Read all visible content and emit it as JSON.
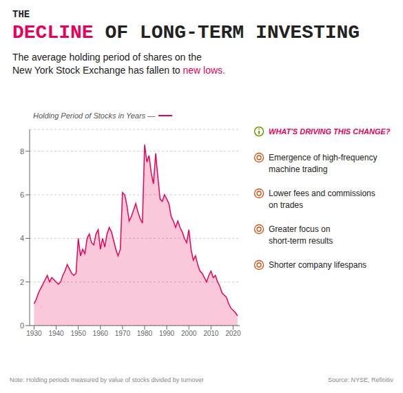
{
  "chart_data": {
    "type": "area",
    "title": [
      [
        {
          "text": "THE"
        }
      ],
      [
        {
          "text": "DECLINE",
          "color": "#e8005a"
        },
        {
          "text": "OF LONG-TERM"
        },
        {
          "text": "INVESTING"
        }
      ]
    ],
    "subtitle": [
      [
        {
          "text": "The average holding period of shares on the"
        }
      ],
      [
        {
          "text": "New York Stock Exchange has fallen to"
        },
        {
          "text": "new lows.",
          "color": "#e8005a"
        }
      ]
    ],
    "y_label": "Holding Period of Stocks in Years —",
    "annotations": {
      "panel_title": "WHAT'S DRIVING THIS CHANGE?",
      "panel_items": [
        "Emergence of high-frequency\nmachine trading",
        "Lower fees and commissions\non trades",
        "Greater focus on\nshort-term results",
        "Shorter company lifespans"
      ],
      "note": "Note: Holding periods measured by value of stocks divided by turnover",
      "source": "Source: NYSE, Refinitiv"
    },
    "x": [
      1930,
      1931,
      1932,
      1933,
      1934,
      1935,
      1936,
      1937,
      1938,
      1939,
      1940,
      1941,
      1942,
      1943,
      1944,
      1945,
      1946,
      1947,
      1948,
      1949,
      1950,
      1951,
      1952,
      1953,
      1954,
      1955,
      1956,
      1957,
      1958,
      1959,
      1960,
      1961,
      1962,
      1963,
      1964,
      1965,
      1966,
      1967,
      1968,
      1969,
      1970,
      1971,
      1972,
      1973,
      1974,
      1975,
      1976,
      1977,
      1978,
      1979,
      1980,
      1981,
      1982,
      1983,
      1984,
      1985,
      1986,
      1987,
      1988,
      1989,
      1990,
      1991,
      1992,
      1993,
      1994,
      1995,
      1996,
      1997,
      1998,
      1999,
      2000,
      2001,
      2002,
      2003,
      2004,
      2005,
      2006,
      2007,
      2008,
      2009,
      2010,
      2011,
      2012,
      2013,
      2014,
      2015,
      2016,
      2017,
      2018,
      2019,
      2020,
      2021,
      2022
    ],
    "values": [
      1.0,
      1.2,
      1.5,
      1.7,
      1.9,
      2.1,
      2.3,
      2.0,
      2.2,
      2.1,
      2.0,
      1.9,
      2.0,
      2.3,
      2.5,
      2.8,
      2.6,
      2.4,
      2.3,
      2.4,
      4.0,
      3.2,
      3.5,
      3.3,
      4.0,
      4.2,
      3.8,
      3.7,
      4.2,
      4.4,
      3.5,
      4.0,
      3.6,
      4.2,
      4.5,
      4.3,
      3.9,
      3.5,
      3.2,
      3.5,
      6.1,
      6.0,
      5.5,
      4.8,
      5.0,
      5.3,
      5.6,
      5.2,
      4.9,
      4.7,
      8.3,
      7.5,
      7.8,
      7.0,
      6.5,
      7.9,
      6.8,
      5.8,
      5.7,
      6.0,
      5.8,
      5.6,
      5.0,
      4.8,
      4.5,
      4.8,
      4.5,
      4.3,
      4.0,
      3.8,
      4.4,
      3.5,
      3.0,
      3.2,
      2.8,
      2.5,
      2.4,
      2.2,
      2.0,
      2.3,
      2.5,
      2.2,
      2.3,
      2.0,
      1.8,
      1.5,
      1.4,
      1.3,
      1.0,
      0.8,
      0.7,
      0.6,
      0.45
    ],
    "color": "#e8005a",
    "xlim": [
      1928,
      2023
    ],
    "ylim": [
      0,
      9
    ],
    "xticks": [
      1930,
      1940,
      1950,
      1960,
      1970,
      1980,
      1990,
      2000,
      2010,
      2020
    ],
    "yticks": [
      0,
      2,
      4,
      6,
      8
    ],
    "grid": true
  }
}
